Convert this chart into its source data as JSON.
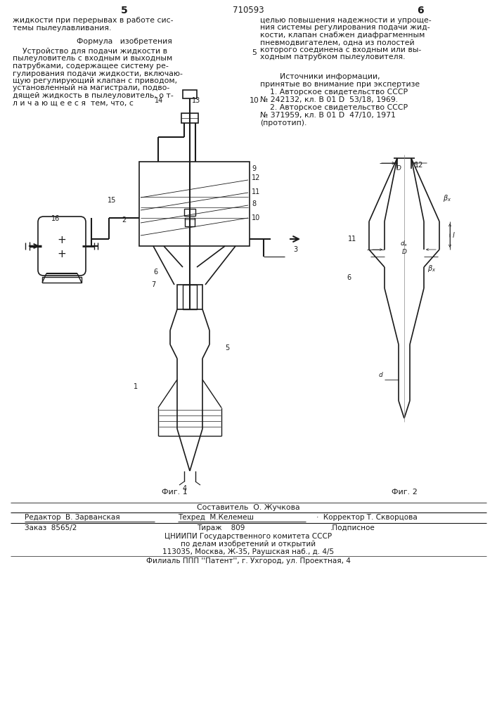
{
  "bg_color": "#ffffff",
  "page_color": "#ffffff",
  "title_patent": "710593",
  "page_left": "5",
  "page_right": "6",
  "text_col1_line1": "жидкости при перерывах в работе сис-",
  "text_col1_line2": "темы пылеулавливания.",
  "text_formula_title": "Формула   изобретения",
  "text_formula_lines": [
    "    Устройство для подачи жидкости в",
    "пылеуловитель с входным и выходным",
    "патрубками, содержащее систему ре-",
    "гулирования подачи жидкости, включаю-",
    "щую регулирующий клапан с приводом,",
    "установленный на магистрали, подво-",
    "дящей жидкость в пылеуловитель, о т-",
    "л и ч а ю щ е е с я  тем, что, с"
  ],
  "text_col2_lines": [
    "целью повышения надежности и упроще-",
    "ния системы регулирования подачи жид-",
    "кости, клапан снабжен диафрагменным",
    "пневмодвигателем, одна из полостей",
    "которого соединена с входным или вы-",
    "ходным патрубком пылеуловителя."
  ],
  "text_src_title1": "        Источники информации,",
  "text_src_title2": "принятые во внимание при экспертизе",
  "text_src1_1": "    1. Авторское свидетельство СССР",
  "text_src1_2": "№ 242132, кл. В 01 D  53/18, 1969.",
  "text_src2_1": "    2. Авторское свидетельство СССР",
  "text_src2_2": "№ 371959, кл. В 01 D  47/10, 1971",
  "text_src2_3": "(прототип).",
  "num5_label": "5",
  "num10_label": "10",
  "text_fig1": "Фиг. 1",
  "text_fig2": "Фиг. 2",
  "text_sostavitel": "Составитель  О. Жучкова",
  "text_redaktor_label": "Редактор  В. Зарванская",
  "text_tehred_label": "Техред  М.Келемеш",
  "text_korrektor_label": "·  Корректор Т. Скворцова",
  "text_zakaz": "Заказ  8565/2",
  "text_tirazh": "Тираж    809",
  "text_podpisnoe": ".Подписное",
  "text_cniip1": "ЦНИИПИ Государственного комитета СССР",
  "text_cniip2": "по делам изобретений и открытий",
  "text_cniip3": "113035, Москва, Ж-35, Раушская наб., д. 4/5",
  "text_filial": "Филиаль ППП ''Патент'', г. Ухгород, ул. Проектная, 4",
  "lc": "#1a1a1a",
  "tc": "#1a1a1a"
}
